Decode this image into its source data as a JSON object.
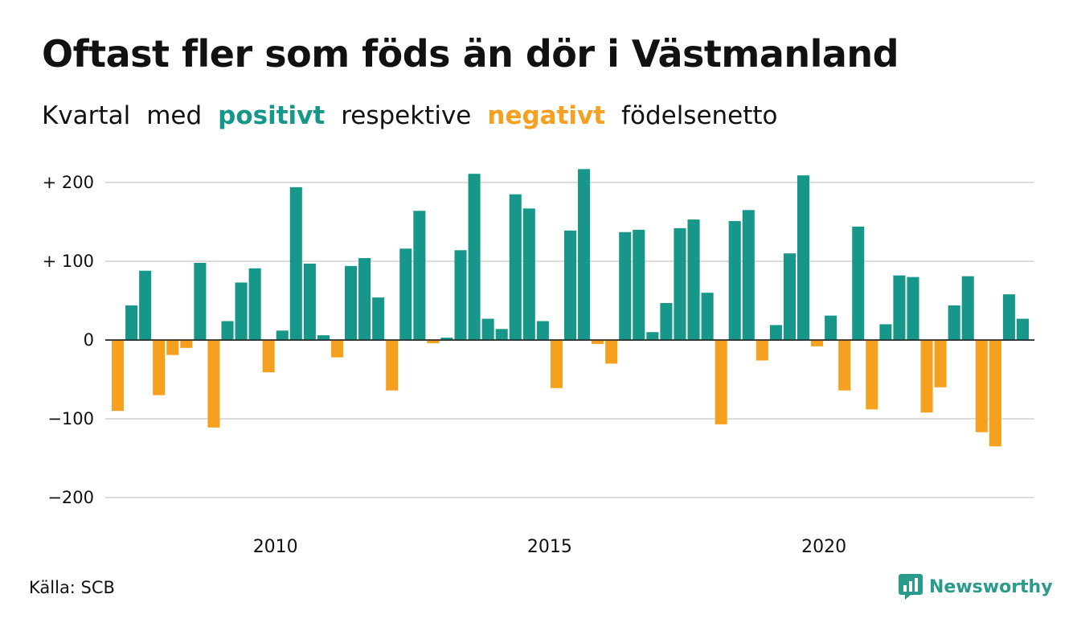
{
  "colors": {
    "positive": "#17968A",
    "negative": "#F5A01F",
    "grid": "#dddddd",
    "brand": "#2a9b8b"
  },
  "header": {
    "title": "Oftast fler som föds än dör i Västmanland",
    "subtitle": {
      "w1": "Kvartal",
      "w2": "med",
      "positive": "positivt",
      "w3": "respektive",
      "negative": "negativt",
      "w4": "födelsenetto"
    }
  },
  "footer": {
    "source": "Källa: SCB",
    "brand": "Newsworthy"
  },
  "chart_data": {
    "type": "bar",
    "title": "Oftast fler som föds än dör i Västmanland",
    "subtitle": "Kvartal med positivt respektive negativt födelsenetto",
    "ylabel": "",
    "xlabel": "",
    "ylim": [
      -230,
      220
    ],
    "y_ticks": [
      {
        "value": 200,
        "label": "+ 200"
      },
      {
        "value": 100,
        "label": "+ 100"
      },
      {
        "value": 0,
        "label": "0"
      },
      {
        "value": -100,
        "label": "−100"
      },
      {
        "value": -200,
        "label": "−200"
      }
    ],
    "x_ticks": [
      {
        "value": 2010,
        "label": "2010"
      },
      {
        "value": 2015,
        "label": "2015"
      },
      {
        "value": 2020,
        "label": "2020"
      }
    ],
    "grid": true,
    "start": {
      "year": 2007,
      "quarter": 1
    },
    "values": [
      -90,
      44,
      88,
      -70,
      -19,
      -10,
      98,
      -111,
      24,
      73,
      91,
      -41,
      12,
      194,
      97,
      6,
      -22,
      94,
      104,
      54,
      -64,
      116,
      164,
      -4,
      3,
      114,
      211,
      27,
      14,
      185,
      167,
      24,
      -61,
      139,
      217,
      -5,
      -30,
      137,
      140,
      10,
      47,
      142,
      153,
      60,
      -107,
      151,
      165,
      -26,
      19,
      110,
      209,
      -8,
      31,
      -64,
      144,
      -88,
      20,
      82,
      80,
      -92,
      -60,
      44,
      81,
      -117,
      -135,
      58,
      27
    ]
  }
}
